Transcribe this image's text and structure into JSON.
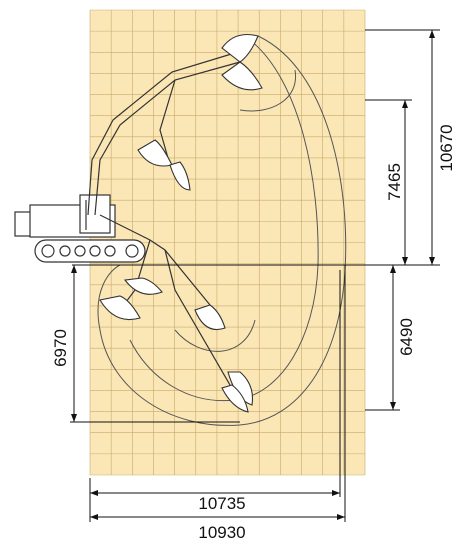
{
  "colors": {
    "grid_fill": "#fbe7b6",
    "grid_line": "#c9a96a",
    "machine_line": "#333333",
    "dimension_line": "#111111"
  },
  "labels": {
    "max_height": "10670",
    "dump_height": "7465",
    "dig_depth": "6490",
    "vertical_wall_depth": "6970",
    "reach_at_ground": "10735",
    "max_reach": "10930"
  },
  "icons": {
    "machine": "excavator-silhouette-icon",
    "bucket": "bucket-icon"
  }
}
